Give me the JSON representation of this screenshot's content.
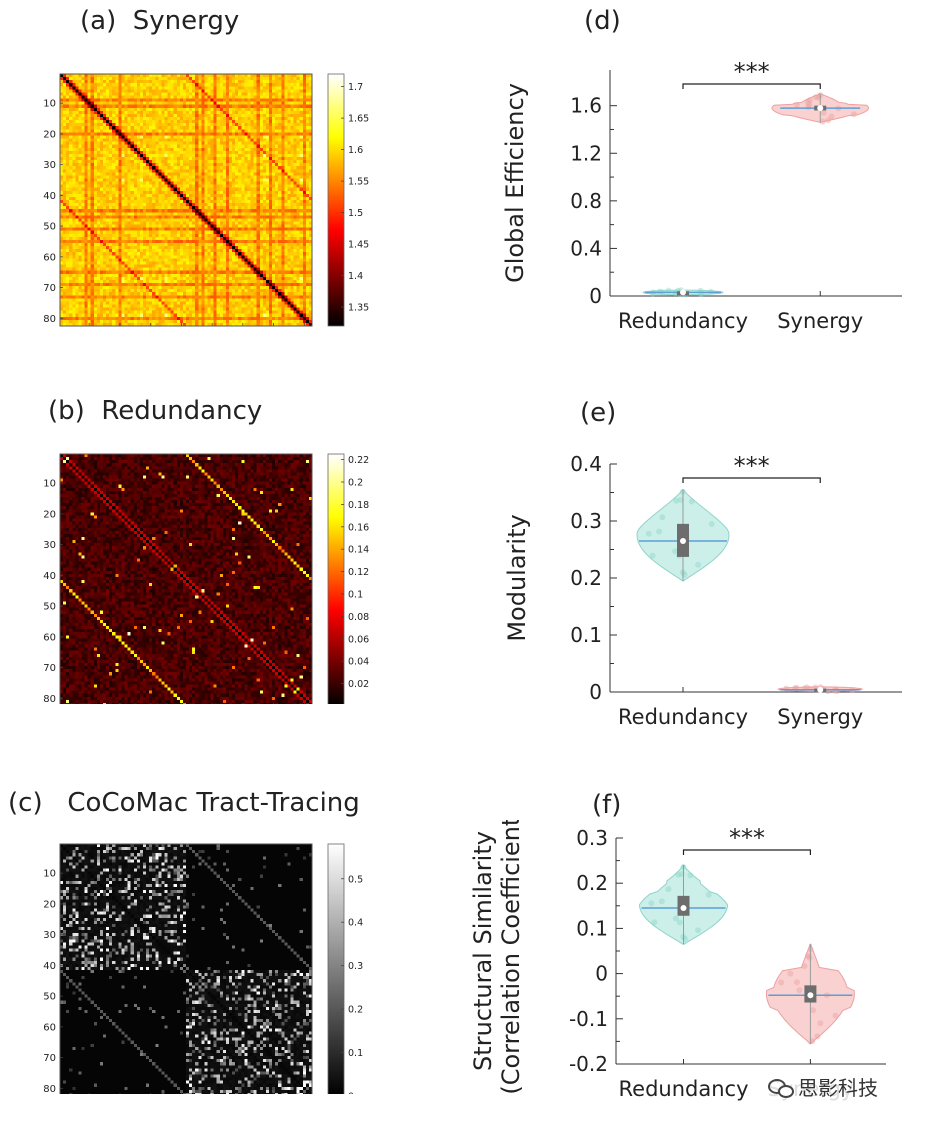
{
  "panels": {
    "a": {
      "label": "(a)  Synergy"
    },
    "b": {
      "label": "(b)  Redundancy"
    },
    "c": {
      "label": "(c)   CoCoMac Tract-Tracing"
    },
    "d": {
      "label": "(d)"
    },
    "e": {
      "label": "(e)"
    },
    "f": {
      "label": "(f)"
    }
  },
  "watermark": {
    "text": "思影科技",
    "icon": "wechat-icon"
  },
  "chart_data": [
    {
      "id": "a",
      "type": "heatmap",
      "n": 82,
      "x_ticks": [
        "10",
        "20",
        "30",
        "40",
        "50",
        "60",
        "70",
        "80"
      ],
      "y_ticks": [
        "10",
        "20",
        "30",
        "40",
        "50",
        "60",
        "70",
        "80"
      ],
      "colorbar_ticks": [
        "1.35",
        "1.4",
        "1.45",
        "1.5",
        "1.55",
        "1.6",
        "1.65",
        "1.7"
      ],
      "clim": [
        1.32,
        1.72
      ],
      "colormap": "hot",
      "description_values": {
        "diagonal": 1.32,
        "typical": 1.6
      }
    },
    {
      "id": "b",
      "type": "heatmap",
      "n": 82,
      "x_ticks": [
        "10",
        "20",
        "30",
        "40",
        "50",
        "60",
        "70",
        "80"
      ],
      "y_ticks": [
        "10",
        "20",
        "30",
        "40",
        "50",
        "60",
        "70",
        "80"
      ],
      "colorbar_ticks": [
        "0.02",
        "0.04",
        "0.06",
        "0.08",
        "0.1",
        "0.12",
        "0.14",
        "0.16",
        "0.18",
        "0.2",
        "0.22"
      ],
      "clim": [
        0,
        0.225
      ],
      "colormap": "hot"
    },
    {
      "id": "c",
      "type": "heatmap",
      "n": 82,
      "x_ticks": [
        "10",
        "20",
        "30",
        "40",
        "50",
        "60",
        "70",
        "80"
      ],
      "y_ticks": [
        "10",
        "20",
        "30",
        "40",
        "50",
        "60",
        "70",
        "80"
      ],
      "colorbar_ticks": [
        "0",
        "0.1",
        "0.2",
        "0.3",
        "0.4",
        "0.5"
      ],
      "clim": [
        0,
        0.58
      ],
      "colormap": "gray"
    },
    {
      "id": "d",
      "type": "violin",
      "ylabel": [
        "Global Efficiency"
      ],
      "categories": [
        "Redundancy",
        "Synergy"
      ],
      "ylim": [
        0,
        1.9
      ],
      "yticks": [
        0,
        0.4,
        0.8,
        1.2,
        1.6
      ],
      "ytick_labels": [
        "0",
        "0.4",
        "0.8",
        "1.2",
        "1.6"
      ],
      "significance": "***",
      "series": [
        {
          "category": "Redundancy",
          "median": 0.03,
          "q1": 0.02,
          "q3": 0.04,
          "min": 0.01,
          "max": 0.05,
          "colors": {
            "fill": "#c4ece6",
            "edge": "#8fd4c8"
          }
        },
        {
          "category": "Synergy",
          "median": 1.58,
          "q1": 1.56,
          "q3": 1.6,
          "min": 1.46,
          "max": 1.7,
          "colors": {
            "fill": "#f8c9c9",
            "edge": "#eea0a0"
          }
        }
      ]
    },
    {
      "id": "e",
      "type": "violin",
      "ylabel": [
        "Modularity"
      ],
      "categories": [
        "Redundancy",
        "Synergy"
      ],
      "ylim": [
        0,
        0.4
      ],
      "yticks": [
        0,
        0.1,
        0.2,
        0.3,
        0.4
      ],
      "ytick_labels": [
        "0",
        "0.1",
        "0.2",
        "0.3",
        "0.4"
      ],
      "significance": "***",
      "series": [
        {
          "category": "Redundancy",
          "median": 0.265,
          "q1": 0.237,
          "q3": 0.295,
          "min": 0.195,
          "max": 0.355,
          "colors": {
            "fill": "#c4ece6",
            "edge": "#8fd4c8"
          }
        },
        {
          "category": "Synergy",
          "median": 0.004,
          "q1": 0.002,
          "q3": 0.006,
          "min": 0.001,
          "max": 0.009,
          "colors": {
            "fill": "#f8c9c9",
            "edge": "#eea0a0"
          }
        }
      ]
    },
    {
      "id": "f",
      "type": "violin",
      "ylabel": [
        "Structural Similarity",
        "(Correlation Coefficient)"
      ],
      "categories": [
        "Redundancy",
        "Synergy"
      ],
      "ylim": [
        -0.2,
        0.3
      ],
      "yticks": [
        -0.2,
        -0.1,
        0,
        0.1,
        0.2,
        0.3
      ],
      "ytick_labels": [
        "-0.2",
        "-0.1",
        "0",
        "0.1",
        "0.2",
        "0.3"
      ],
      "significance": "***",
      "series": [
        {
          "category": "Redundancy",
          "median": 0.145,
          "q1": 0.128,
          "q3": 0.172,
          "min": 0.065,
          "max": 0.24,
          "colors": {
            "fill": "#c4ece6",
            "edge": "#8fd4c8"
          }
        },
        {
          "category": "Synergy",
          "median": -0.048,
          "q1": -0.064,
          "q3": -0.026,
          "min": -0.155,
          "max": 0.065,
          "colors": {
            "fill": "#f8c9c9",
            "edge": "#eea0a0"
          }
        }
      ]
    }
  ]
}
